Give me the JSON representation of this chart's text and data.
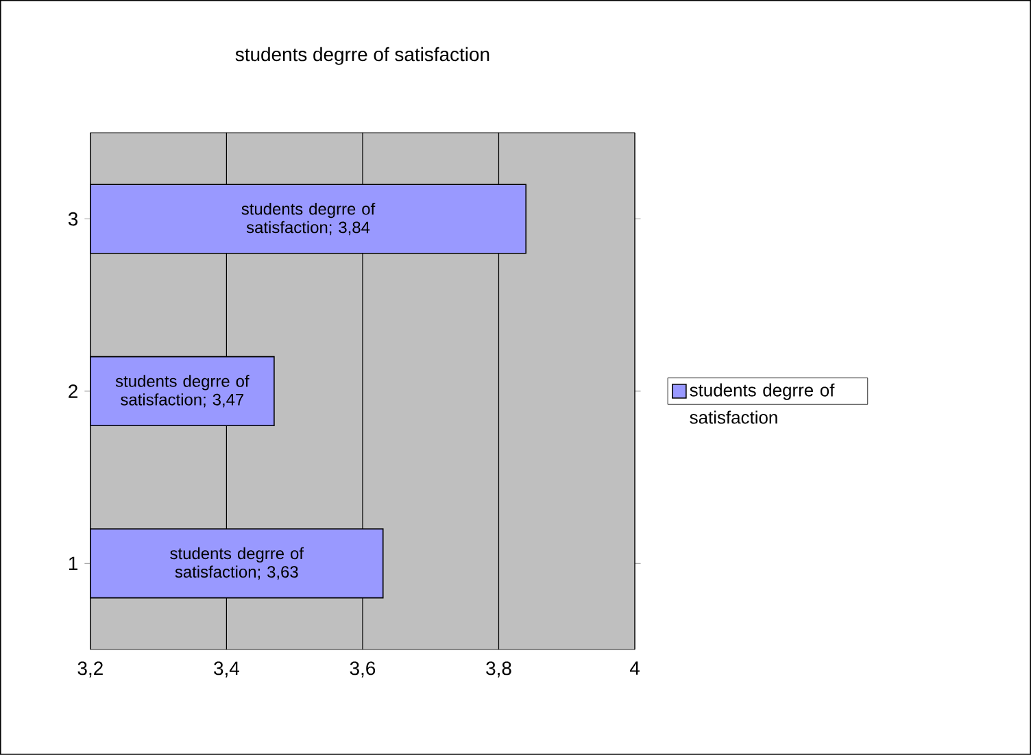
{
  "chart_data": {
    "type": "bar",
    "orientation": "horizontal",
    "title": "students degrre of satisfaction",
    "categories": [
      "3",
      "2",
      "1"
    ],
    "series": [
      {
        "name": "students degrre of satisfaction",
        "color": "#9999ff",
        "values": [
          3.84,
          3.47,
          3.63
        ],
        "value_labels": [
          "students degrre of satisfaction; 3,84",
          "students degrre of satisfaction; 3,47",
          "students degrre of satisfaction; 3,63"
        ]
      }
    ],
    "xlim": [
      3.2,
      4
    ],
    "xticks": [
      {
        "value": 3.2,
        "label": "3,2"
      },
      {
        "value": 3.4,
        "label": "3,4"
      },
      {
        "value": 3.6,
        "label": "3,6"
      },
      {
        "value": 3.8,
        "label": "3,8"
      },
      4
    ],
    "grid": "x",
    "legend": "right"
  }
}
